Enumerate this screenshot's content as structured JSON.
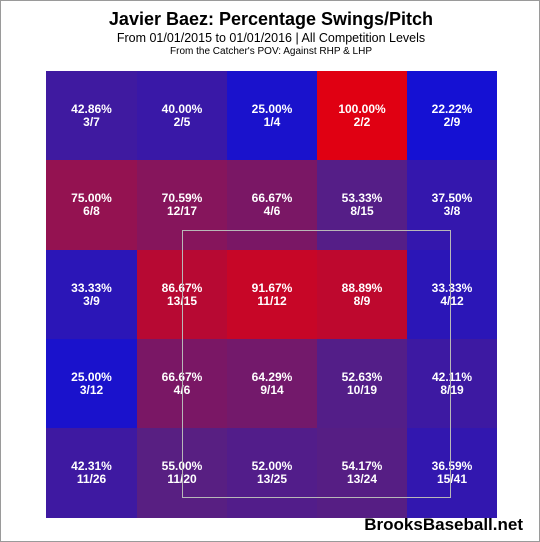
{
  "chart_data": {
    "type": "heatmap",
    "title": "Javier Baez: Percentage Swings/Pitch",
    "subtitle": "From 01/01/2015 to 01/01/2016 | All Competition Levels",
    "note": "From the Catcher's POV:  Against RHP & LHP",
    "rows": 5,
    "cols": 5,
    "cells": [
      [
        {
          "pct": 42.86,
          "label": "42.86%",
          "frac": "3/7"
        },
        {
          "pct": 40.0,
          "label": "40.00%",
          "frac": "2/5"
        },
        {
          "pct": 25.0,
          "label": "25.00%",
          "frac": "1/4"
        },
        {
          "pct": 100.0,
          "label": "100.00%",
          "frac": "2/2"
        },
        {
          "pct": 22.22,
          "label": "22.22%",
          "frac": "2/9"
        }
      ],
      [
        {
          "pct": 75.0,
          "label": "75.00%",
          "frac": "6/8"
        },
        {
          "pct": 70.59,
          "label": "70.59%",
          "frac": "12/17"
        },
        {
          "pct": 66.67,
          "label": "66.67%",
          "frac": "4/6"
        },
        {
          "pct": 53.33,
          "label": "53.33%",
          "frac": "8/15"
        },
        {
          "pct": 37.5,
          "label": "37.50%",
          "frac": "3/8"
        }
      ],
      [
        {
          "pct": 33.33,
          "label": "33.33%",
          "frac": "3/9"
        },
        {
          "pct": 86.67,
          "label": "86.67%",
          "frac": "13/15"
        },
        {
          "pct": 91.67,
          "label": "91.67%",
          "frac": "11/12"
        },
        {
          "pct": 88.89,
          "label": "88.89%",
          "frac": "8/9"
        },
        {
          "pct": 33.33,
          "label": "33.33%",
          "frac": "4/12"
        }
      ],
      [
        {
          "pct": 25.0,
          "label": "25.00%",
          "frac": "3/12"
        },
        {
          "pct": 66.67,
          "label": "66.67%",
          "frac": "4/6"
        },
        {
          "pct": 64.29,
          "label": "64.29%",
          "frac": "9/14"
        },
        {
          "pct": 52.63,
          "label": "52.63%",
          "frac": "10/19"
        },
        {
          "pct": 42.11,
          "label": "42.11%",
          "frac": "8/19"
        }
      ],
      [
        {
          "pct": 42.31,
          "label": "42.31%",
          "frac": "11/26"
        },
        {
          "pct": 55.0,
          "label": "55.00%",
          "frac": "11/20"
        },
        {
          "pct": 52.0,
          "label": "52.00%",
          "frac": "13/25"
        },
        {
          "pct": 54.17,
          "label": "54.17%",
          "frac": "13/24"
        },
        {
          "pct": 36.59,
          "label": "36.59%",
          "frac": "15/41"
        }
      ]
    ],
    "colors": {
      "low": "#1010d8",
      "mid": "#5a1f80",
      "high": "#e00012"
    }
  },
  "watermark": "BrooksBaseball.net"
}
